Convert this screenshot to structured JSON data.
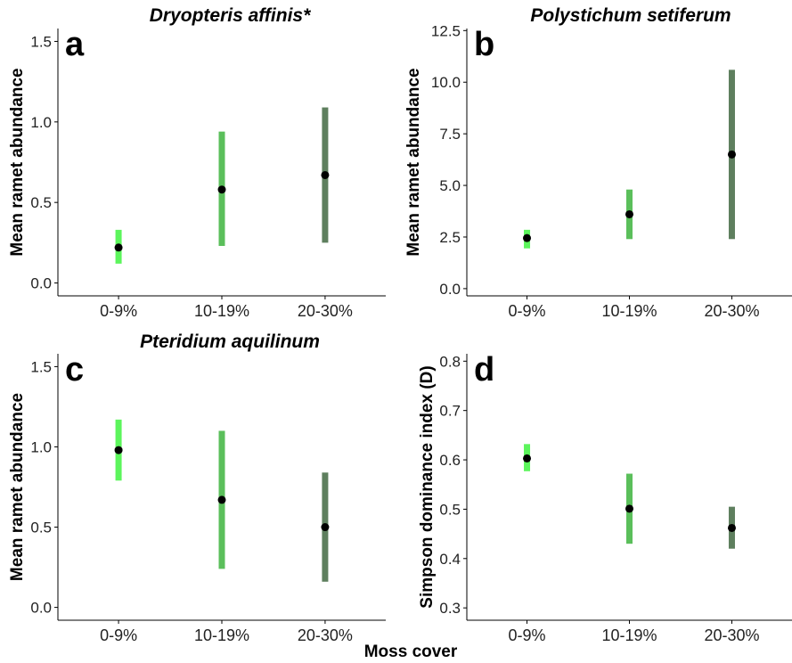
{
  "figure": {
    "x_title": "Moss cover"
  },
  "colors": {
    "0-9%": "#5cf55c",
    "10-19%": "#5bbf5b",
    "20-30%": "#5e7f5e",
    "point": "#000000"
  },
  "chart_data": [
    {
      "type": "scatter",
      "letter": "a",
      "title": "Dryopteris affinis*",
      "xlabel": "",
      "ylabel": "Mean ramet abundance",
      "ylim": [
        -0.08,
        1.58
      ],
      "yticks": [
        0.0,
        0.5,
        1.0,
        1.5
      ],
      "ytick_labels": [
        "0.0",
        "0.5",
        "1.0",
        "1.5"
      ],
      "categories": [
        "0-9%",
        "10-19%",
        "20-30%"
      ],
      "values": [
        0.22,
        0.58,
        0.67
      ],
      "ci_low": [
        0.12,
        0.23,
        0.25
      ],
      "ci_high": [
        0.33,
        0.94,
        1.09
      ]
    },
    {
      "type": "scatter",
      "letter": "b",
      "title": "Polystichum setiferum",
      "xlabel": "",
      "ylabel": "Mean ramet abundance",
      "ylim": [
        -0.35,
        12.6
      ],
      "yticks": [
        0.0,
        2.5,
        5.0,
        7.5,
        10.0,
        12.5
      ],
      "ytick_labels": [
        "0.0",
        "2.5",
        "5.0",
        "7.5",
        "10.0",
        "12.5"
      ],
      "categories": [
        "0-9%",
        "10-19%",
        "20-30%"
      ],
      "values": [
        2.45,
        3.6,
        6.5
      ],
      "ci_low": [
        1.95,
        2.4,
        2.4
      ],
      "ci_high": [
        2.85,
        4.8,
        10.6
      ]
    },
    {
      "type": "scatter",
      "letter": "c",
      "title": "Pteridium aquilinum",
      "xlabel": "",
      "ylabel": "Mean ramet abundance",
      "ylim": [
        -0.08,
        1.58
      ],
      "yticks": [
        0.0,
        0.5,
        1.0,
        1.5
      ],
      "ytick_labels": [
        "0.0",
        "0.5",
        "1.0",
        "1.5"
      ],
      "categories": [
        "0-9%",
        "10-19%",
        "20-30%"
      ],
      "values": [
        0.98,
        0.67,
        0.5
      ],
      "ci_low": [
        0.79,
        0.24,
        0.16
      ],
      "ci_high": [
        1.17,
        1.1,
        0.84
      ]
    },
    {
      "type": "scatter",
      "letter": "d",
      "title": "",
      "xlabel": "",
      "ylabel": "Simpson dominance index (D)",
      "ylim": [
        0.275,
        0.815
      ],
      "yticks": [
        0.3,
        0.4,
        0.5,
        0.6,
        0.7,
        0.8
      ],
      "ytick_labels": [
        "0.3",
        "0.4",
        "0.5",
        "0.6",
        "0.7",
        "0.8"
      ],
      "categories": [
        "0-9%",
        "10-19%",
        "20-30%"
      ],
      "values": [
        0.603,
        0.501,
        0.462
      ],
      "ci_low": [
        0.577,
        0.43,
        0.42
      ],
      "ci_high": [
        0.632,
        0.572,
        0.505
      ]
    }
  ]
}
